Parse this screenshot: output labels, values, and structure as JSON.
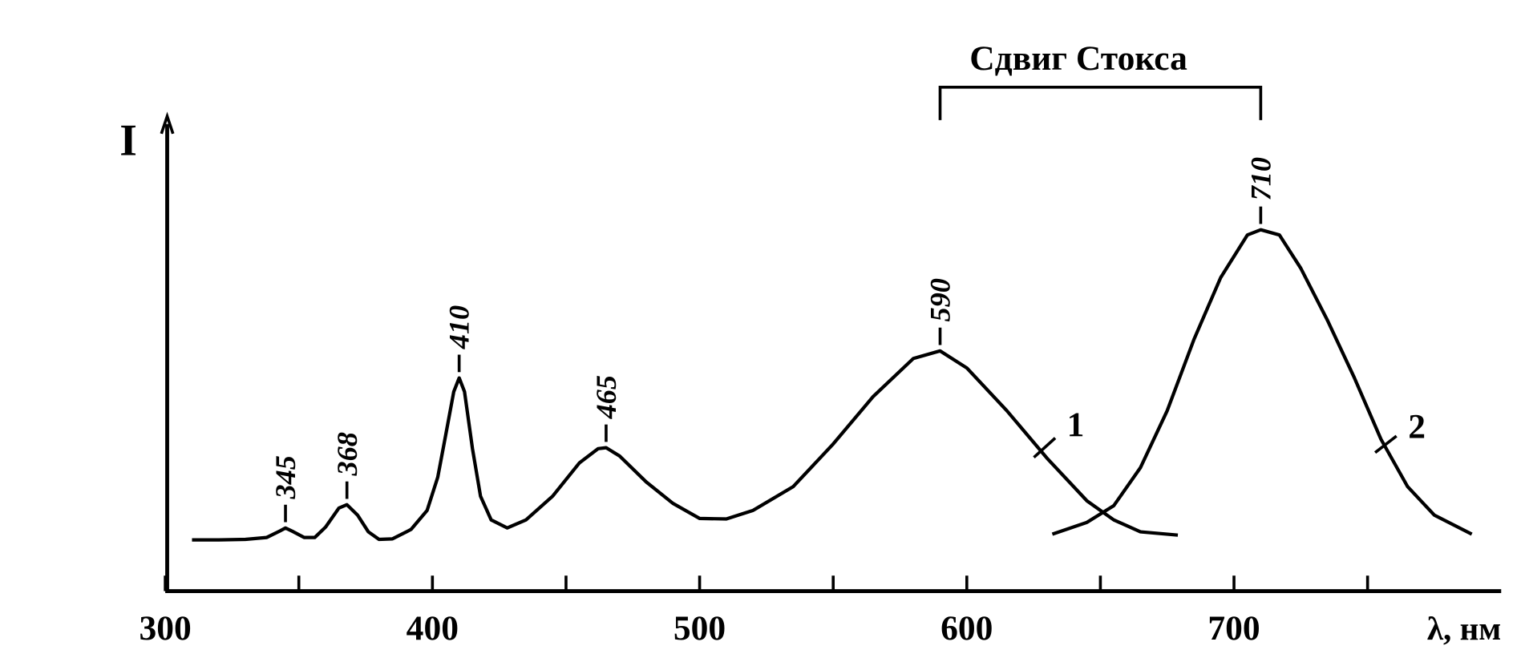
{
  "chart_data": {
    "type": "line",
    "title": "Сдвиг Стокса",
    "x_label": "λ, нм",
    "y_label": "I",
    "xlim": [
      300,
      800
    ],
    "ylim": [
      0,
      100
    ],
    "xticks": [
      300,
      400,
      500,
      600,
      700
    ],
    "xminorticks": [
      350,
      450,
      550,
      650,
      750
    ],
    "peaks": [
      345,
      368,
      410,
      465,
      590,
      710
    ],
    "series": [
      {
        "name": "1",
        "color": "#000000",
        "x": [
          310,
          320,
          330,
          338,
          343,
          345,
          348,
          352,
          356,
          360,
          365,
          368,
          372,
          376,
          380,
          385,
          392,
          398,
          402,
          405,
          408,
          410,
          412,
          415,
          418,
          422,
          428,
          435,
          445,
          455,
          462,
          465,
          470,
          480,
          490,
          500,
          510,
          520,
          535,
          550,
          565,
          580,
          590,
          600,
          615,
          630,
          645,
          655,
          665,
          679
        ],
        "values": [
          10.8,
          10.8,
          10.9,
          11.3,
          12.7,
          13.3,
          12.5,
          11.3,
          11.3,
          13.5,
          17.5,
          18.2,
          16,
          12.5,
          10.9,
          11,
          13,
          17,
          24,
          33,
          42,
          44.9,
          42,
          30,
          20,
          15,
          13.3,
          15,
          20,
          27,
          30,
          30.2,
          28.5,
          23,
          18.5,
          15.3,
          15.2,
          17,
          22,
          31,
          41,
          49,
          50.6,
          47,
          38,
          28,
          19,
          15,
          12.5,
          11.8
        ]
      },
      {
        "name": "2",
        "color": "#000000",
        "x": [
          632,
          645,
          655,
          665,
          675,
          685,
          695,
          705,
          710,
          717,
          725,
          735,
          745,
          755,
          765,
          775,
          789
        ],
        "values": [
          12,
          14.5,
          18,
          26,
          38,
          53,
          66,
          75,
          76.1,
          75,
          68,
          57,
          45,
          32,
          22,
          16,
          12
        ]
      }
    ]
  }
}
